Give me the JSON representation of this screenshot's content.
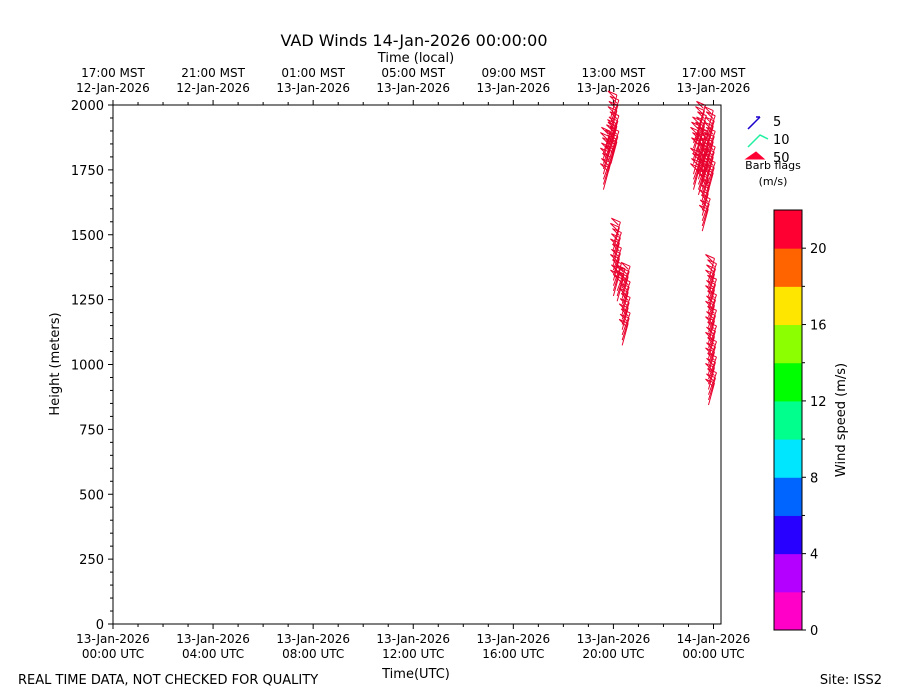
{
  "chart_data": {
    "type": "barb",
    "title": "VAD Winds 14-Jan-2026 00:00:00",
    "top_axis_label": "Time (local)",
    "xlabel": "Time(UTC)",
    "ylabel": "Height (meters)",
    "ylim": [
      0,
      2000
    ],
    "y_ticks": [
      0,
      250,
      500,
      750,
      1000,
      1250,
      1500,
      1750,
      2000
    ],
    "x_range_hours_utc": [
      0,
      24.3
    ],
    "bottom_ticks": [
      {
        "hour": 0,
        "line1": "13-Jan-2026",
        "line2": "00:00 UTC"
      },
      {
        "hour": 4,
        "line1": "13-Jan-2026",
        "line2": "04:00 UTC"
      },
      {
        "hour": 8,
        "line1": "13-Jan-2026",
        "line2": "08:00 UTC"
      },
      {
        "hour": 12,
        "line1": "13-Jan-2026",
        "line2": "12:00 UTC"
      },
      {
        "hour": 16,
        "line1": "13-Jan-2026",
        "line2": "16:00 UTC"
      },
      {
        "hour": 20,
        "line1": "13-Jan-2026",
        "line2": "20:00 UTC"
      },
      {
        "hour": 24,
        "line1": "14-Jan-2026",
        "line2": "00:00 UTC"
      }
    ],
    "top_ticks": [
      {
        "hour": 0,
        "line1": "17:00 MST",
        "line2": "12-Jan-2026"
      },
      {
        "hour": 4,
        "line1": "21:00 MST",
        "line2": "12-Jan-2026"
      },
      {
        "hour": 8,
        "line1": "01:00 MST",
        "line2": "13-Jan-2026"
      },
      {
        "hour": 12,
        "line1": "05:00 MST",
        "line2": "13-Jan-2026"
      },
      {
        "hour": 16,
        "line1": "09:00 MST",
        "line2": "13-Jan-2026"
      },
      {
        "hour": 20,
        "line1": "13:00 MST",
        "line2": "13-Jan-2026"
      },
      {
        "hour": 24,
        "line1": "17:00 MST",
        "line2": "13-Jan-2026"
      }
    ],
    "barb_legend": {
      "title_line1": "Barb flags",
      "title_line2": "(m/s)",
      "entries": [
        {
          "label": "5",
          "color": "#1a00cc"
        },
        {
          "label": "10",
          "color": "#1ef0a0"
        },
        {
          "label": "50",
          "color": "#ff0033"
        }
      ]
    },
    "colorbar": {
      "label": "Wind speed (m/s)",
      "min": 0,
      "max": 22,
      "ticks": [
        0,
        4,
        8,
        12,
        16,
        20
      ],
      "colors": [
        "#ff00c8",
        "#b400ff",
        "#2800ff",
        "#0064ff",
        "#00e6ff",
        "#00ff8c",
        "#00ff00",
        "#8cff00",
        "#ffe600",
        "#ff6400",
        "#ff0032"
      ]
    },
    "barb_color": "#e8002d",
    "series": [
      {
        "hour": 19.6,
        "heights": [
          1720,
          1740,
          1760,
          1780,
          1800,
          1820,
          1840,
          1860
        ]
      },
      {
        "hour": 19.8,
        "heights": [
          1790,
          1810,
          1830,
          1850,
          1870,
          1890
        ]
      },
      {
        "hour": 19.9,
        "heights": [
          1820,
          1840,
          1860,
          1880,
          1900,
          1920,
          1940,
          1960,
          1980,
          2000
        ]
      },
      {
        "hour": 20.0,
        "heights": [
          1310,
          1330,
          1350,
          1370,
          1390,
          1410,
          1430,
          1450,
          1470,
          1490,
          1510
        ]
      },
      {
        "hour": 20.15,
        "heights": [
          1290,
          1310,
          1330
        ]
      },
      {
        "hour": 20.35,
        "heights": [
          1120,
          1140,
          1160,
          1180,
          1200,
          1220,
          1240,
          1260,
          1280,
          1300,
          1320,
          1340
        ]
      },
      {
        "hour": 23.2,
        "heights": [
          1720,
          1740,
          1760,
          1780,
          1820,
          1840,
          1860,
          1880,
          1900
        ]
      },
      {
        "hour": 23.4,
        "heights": [
          1700,
          1720,
          1740,
          1760,
          1780,
          1800,
          1820,
          1840,
          1860,
          1880,
          1900,
          1920,
          1940,
          1960
        ]
      },
      {
        "hour": 23.55,
        "heights": [
          1560,
          1580,
          1600,
          1620,
          1640,
          1660,
          1680,
          1700,
          1720,
          1740,
          1760,
          1780,
          1800,
          1820,
          1840,
          1860
        ]
      },
      {
        "hour": 23.75,
        "heights": [
          1700,
          1720,
          1740,
          1760,
          1780,
          1800,
          1820,
          1840,
          1860,
          1880,
          1900,
          1920,
          1940
        ]
      },
      {
        "hour": 23.8,
        "heights": [
          890,
          910,
          930,
          950,
          970,
          990,
          1010,
          1030,
          1050,
          1070,
          1090,
          1110,
          1130,
          1150,
          1170,
          1190,
          1210,
          1230,
          1250,
          1270,
          1290,
          1310,
          1330,
          1350,
          1370
        ]
      }
    ]
  },
  "footer": {
    "left": "REAL TIME DATA, NOT CHECKED FOR QUALITY",
    "right": "Site: ISS2"
  }
}
